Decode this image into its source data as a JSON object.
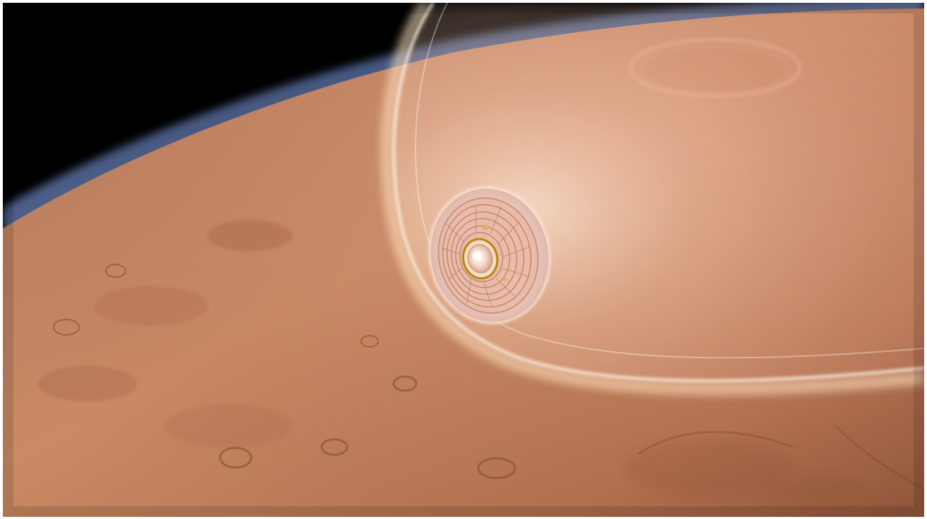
{
  "image": {
    "subject": "",
    "colors": {
      "space": "#000000",
      "atmosphere_limb": "#5a6f9e",
      "surface_light": "#c98a64",
      "surface_mid": "#b2714f",
      "surface_dark": "#8d5438",
      "plasma_glow": "#ffe2bf",
      "heat_shield": "#f0d0c6",
      "heat_shield_core": "#e7b69f"
    }
  }
}
